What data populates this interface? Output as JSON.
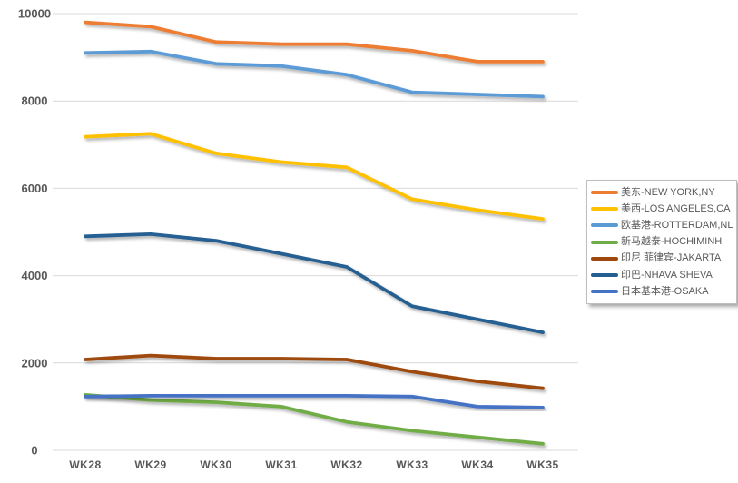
{
  "chart_data": {
    "type": "line",
    "title": "",
    "categories": [
      "WK28",
      "WK29",
      "WK30",
      "WK31",
      "WK32",
      "WK33",
      "WK34",
      "WK35"
    ],
    "series": [
      {
        "name": "美东-NEW YORK,NY",
        "color": "#ED7D31",
        "values": [
          9800,
          9700,
          9350,
          9300,
          9300,
          9150,
          8900,
          8900
        ]
      },
      {
        "name": "美西-LOS ANGELES,CA",
        "color": "#FFC000",
        "values": [
          7180,
          7250,
          6800,
          6600,
          6480,
          5750,
          5500,
          5300
        ]
      },
      {
        "name": "欧基港-ROTTERDAM,NL",
        "color": "#5B9BD5",
        "values": [
          9100,
          9130,
          8850,
          8800,
          8600,
          8200,
          8150,
          8100
        ]
      },
      {
        "name": "新马越泰-HOCHIMINH",
        "color": "#70AD47",
        "values": [
          1270,
          1150,
          1100,
          1000,
          650,
          450,
          300,
          150
        ]
      },
      {
        "name": "印尼 菲律宾-JAKARTA",
        "color": "#9E480E",
        "values": [
          2080,
          2170,
          2100,
          2100,
          2080,
          1800,
          1580,
          1420
        ]
      },
      {
        "name": "印巴-NHAVA SHEVA",
        "color": "#255E91",
        "values": [
          4900,
          4950,
          4800,
          4500,
          4200,
          3300,
          3000,
          2700
        ]
      },
      {
        "name": "日本基本港-OSAKA",
        "color": "#4472C4",
        "values": [
          1230,
          1250,
          1250,
          1250,
          1250,
          1230,
          1000,
          980
        ]
      }
    ],
    "yticks": [
      0,
      2000,
      4000,
      6000,
      8000,
      10000
    ],
    "ylim": [
      0,
      10000
    ],
    "grid": true,
    "legend_position": "right"
  },
  "colors": {
    "grid": "#D9D9D9",
    "axis_text": "#595959",
    "legend_border": "#BFBFBF",
    "background": "#FFFFFF"
  }
}
